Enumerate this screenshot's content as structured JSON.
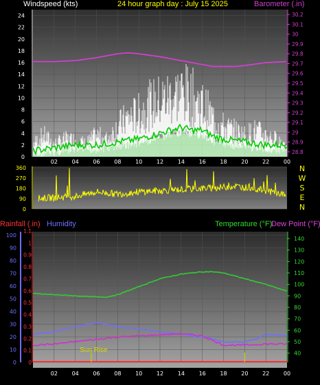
{
  "header": {
    "title": "24 hour graph day : July 15 2025",
    "windspeed_label": "Windspeed (kts)",
    "barometer_label": "Barometer (.in)"
  },
  "lower_header": {
    "rainfall_label": "Rainfall (.in)",
    "humidity_label": "Humidity",
    "temperature_label": "Temperature (°F)",
    "dewpoint_label": "Dew Point (°F)"
  },
  "sunrise_label": "Sun Rise",
  "compass_labels": [
    "N",
    "W",
    "S",
    "E",
    "N"
  ],
  "colors": {
    "windspeed": "#ffffff",
    "wind_avg": "#00cc00",
    "wind_fill": "#b8f0b8",
    "barometer": "#d040d0",
    "direction": "#ffff00",
    "temperature": "#33cc33",
    "dewpoint": "#cc33cc",
    "humidity": "#6f6fff",
    "rainfall": "#ff3333",
    "title": "#ffff00",
    "sunrise": "#cccc00"
  },
  "chart_data": [
    {
      "type": "line",
      "title": "24 hour graph day : July 15 2025",
      "x_ticks": [
        "02",
        "04",
        "06",
        "08",
        "10",
        "12",
        "14",
        "16",
        "18",
        "20",
        "22",
        "00"
      ],
      "y_left": {
        "label": "Windspeed (kts)",
        "ylim": [
          0,
          25
        ],
        "ticks": [
          0,
          2,
          4,
          6,
          8,
          10,
          12,
          14,
          16,
          18,
          20,
          22,
          24
        ]
      },
      "y_right": {
        "label": "Barometer (.in)",
        "ylim": [
          28.75,
          30.25
        ],
        "ticks": [
          "28.8",
          "28.9",
          "29",
          "29.1",
          "29.2",
          "29.3",
          "29.4",
          "29.5",
          "29.6",
          "29.7",
          "29.8",
          "29.9",
          "30",
          "30.1",
          "30.2"
        ]
      },
      "series": [
        {
          "name": "Barometer (.in)",
          "x": [
            0,
            2,
            4,
            6,
            8,
            9,
            10,
            12,
            14,
            16,
            17,
            18,
            19,
            20,
            22,
            24
          ],
          "values": [
            29.72,
            29.72,
            29.73,
            29.76,
            29.8,
            29.81,
            29.8,
            29.77,
            29.73,
            29.69,
            29.67,
            29.67,
            29.67,
            29.68,
            29.71,
            29.72
          ]
        },
        {
          "name": "Windspeed (kts)",
          "x": [
            0,
            1,
            2,
            3,
            4,
            5,
            6,
            7,
            8,
            9,
            10,
            11,
            12,
            13,
            14,
            15,
            16,
            17,
            18,
            19,
            20,
            21,
            22,
            23,
            24
          ],
          "values": [
            3,
            5,
            3,
            4,
            4,
            3,
            5,
            4,
            7,
            9,
            10,
            12,
            13,
            14,
            15,
            14,
            12,
            9,
            7,
            6,
            5,
            6,
            5,
            4,
            3
          ]
        },
        {
          "name": "Wind average",
          "x": [
            0,
            2,
            4,
            6,
            8,
            10,
            12,
            13,
            14,
            15,
            16,
            17,
            18,
            20,
            22,
            24
          ],
          "values": [
            1,
            1.5,
            2,
            2,
            2.5,
            3,
            4,
            4.5,
            5,
            4.5,
            4.5,
            3.5,
            3,
            2.5,
            2,
            2
          ]
        }
      ]
    },
    {
      "type": "line",
      "title": "Wind direction",
      "x_ticks": [],
      "y_left": {
        "ylim": [
          0,
          360
        ],
        "ticks": [
          0,
          90,
          180,
          270,
          360
        ]
      },
      "y_right": {
        "ticks": [
          "N",
          "W",
          "S",
          "E",
          "N"
        ]
      },
      "series": [
        {
          "name": "Wind direction",
          "x": [
            0,
            2,
            4,
            6,
            8,
            10,
            12,
            14,
            16,
            18,
            19,
            20,
            22,
            24
          ],
          "values": [
            90,
            100,
            110,
            150,
            130,
            150,
            160,
            170,
            180,
            190,
            200,
            190,
            160,
            120
          ]
        }
      ]
    },
    {
      "type": "line",
      "x_ticks": [
        "02",
        "04",
        "06",
        "08",
        "10",
        "12",
        "14",
        "16",
        "18",
        "20",
        "22",
        "00"
      ],
      "y_left_outer": {
        "label": "Humidity",
        "ylim": [
          0,
          100
        ],
        "ticks": [
          0,
          10,
          20,
          30,
          40,
          50,
          60,
          70,
          80,
          90,
          100
        ]
      },
      "y_left_inner": {
        "label": "Rainfall (.in)",
        "ylim": [
          0,
          1.1
        ],
        "ticks": [
          "0",
          "0.1",
          "0.2",
          "0.3",
          "0.4",
          "0.5",
          "0.6",
          "0.7",
          "0.8",
          "0.9",
          "1",
          "1.1"
        ]
      },
      "y_right": {
        "label": "Temperature (°F)",
        "ylim": [
          32,
          146
        ],
        "ticks": [
          40,
          50,
          60,
          70,
          80,
          90,
          100,
          110,
          120,
          130,
          140
        ]
      },
      "series": [
        {
          "name": "Temperature (°F)",
          "axis": "right",
          "x": [
            0,
            2,
            4,
            6,
            7,
            8,
            10,
            12,
            14,
            16,
            17,
            18,
            20,
            22,
            24
          ],
          "values": [
            92,
            91,
            90,
            89,
            89,
            91,
            98,
            105,
            109,
            111,
            111,
            110,
            105,
            100,
            94
          ]
        },
        {
          "name": "Humidity",
          "axis": "left",
          "x": [
            0,
            2,
            4,
            6,
            7,
            8,
            10,
            12,
            14,
            16,
            17,
            18,
            19,
            20,
            21,
            22,
            24
          ],
          "values": [
            22,
            24,
            28,
            31,
            30,
            28,
            26,
            24,
            22,
            20,
            18,
            16,
            16,
            16,
            18,
            22,
            21
          ]
        },
        {
          "name": "Dew Point (°F)",
          "axis": "right",
          "x": [
            0,
            2,
            4,
            6,
            8,
            10,
            12,
            14,
            16,
            18,
            20,
            22,
            24
          ],
          "values": [
            47,
            48,
            50,
            52,
            54,
            55,
            56,
            57,
            55,
            47,
            47,
            48,
            48
          ]
        },
        {
          "name": "Rainfall (.in)",
          "axis": "inner",
          "x": [
            0,
            24
          ],
          "values": [
            0,
            0
          ]
        }
      ],
      "annotations": [
        {
          "text": "Sun Rise",
          "x": 5.5
        },
        {
          "text": "",
          "x": 20
        }
      ]
    }
  ]
}
